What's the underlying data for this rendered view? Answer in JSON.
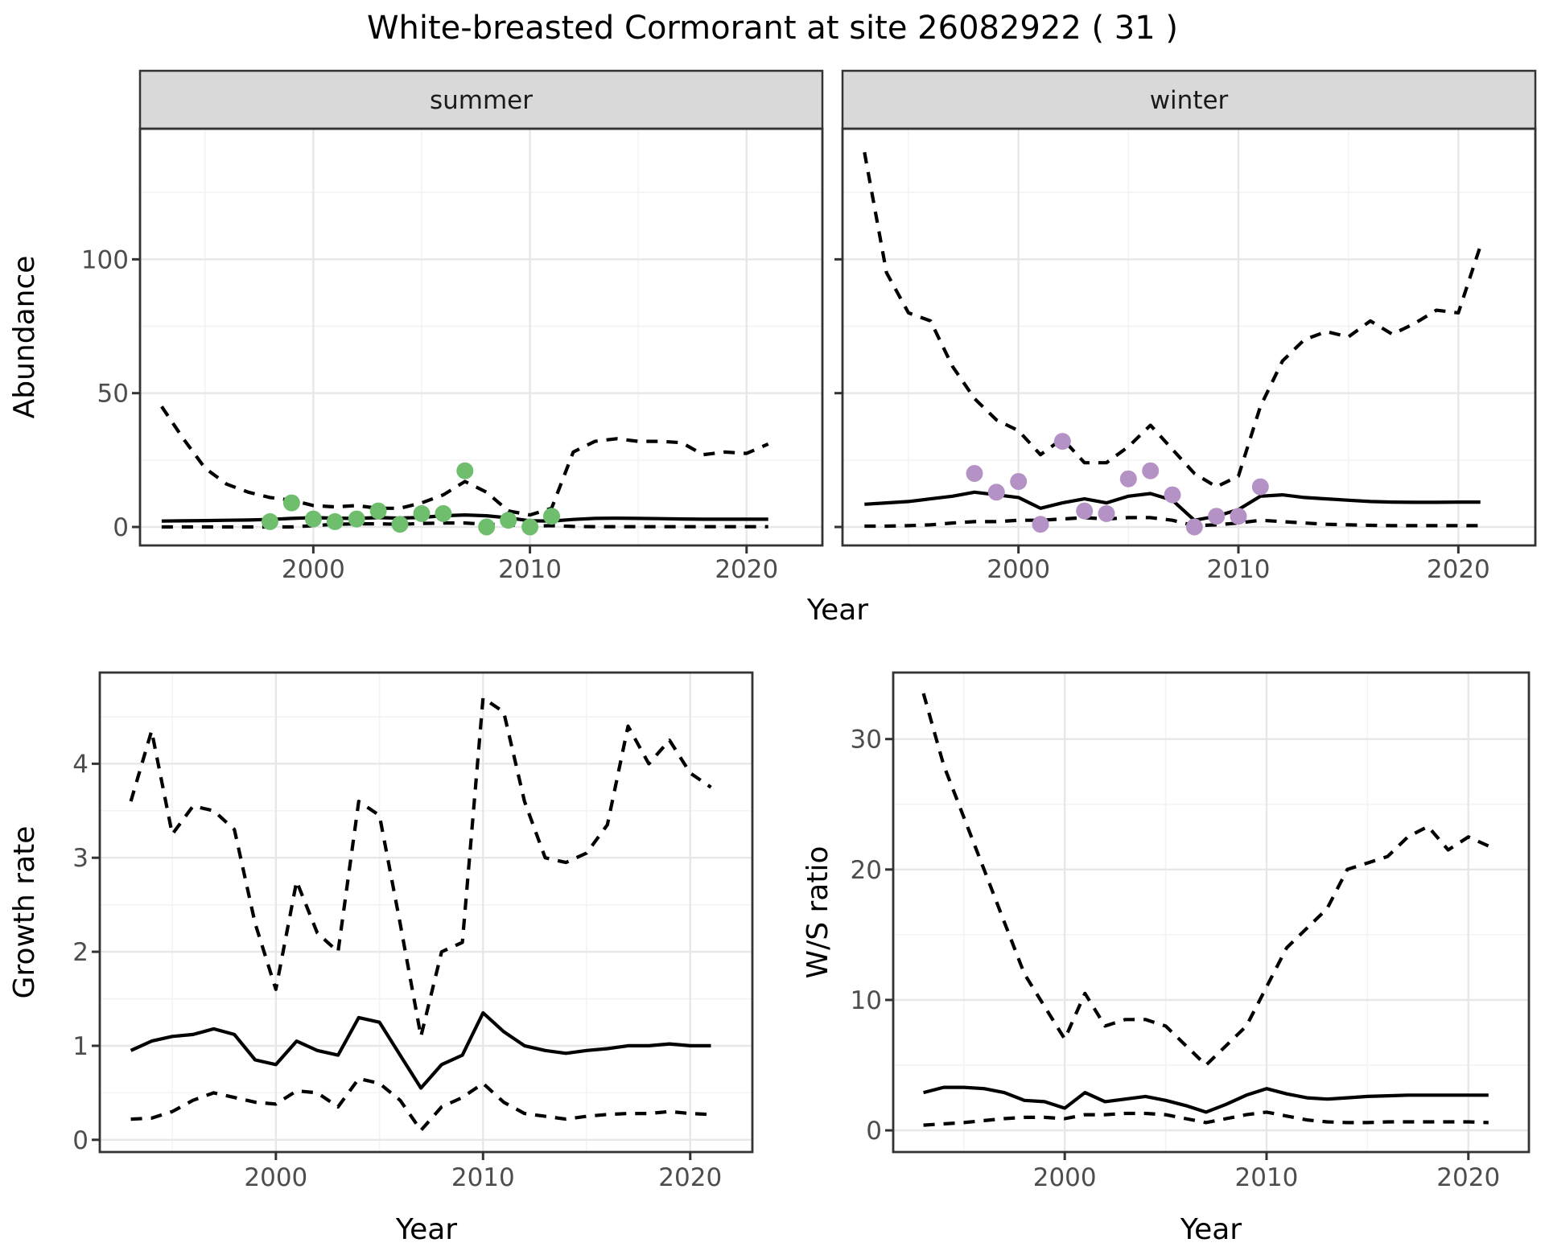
{
  "title": "White-breasted Cormorant at site 26082922 ( 31 )",
  "chart_data": {
    "type": "line",
    "title": "White-breasted Cormorant at site 26082922 ( 31 )",
    "years": [
      1993,
      1994,
      1995,
      1996,
      1997,
      1998,
      1999,
      2000,
      2001,
      2002,
      2003,
      2004,
      2005,
      2006,
      2007,
      2008,
      2009,
      2010,
      2011,
      2012,
      2013,
      2014,
      2015,
      2016,
      2017,
      2018,
      2019,
      2020,
      2021
    ],
    "x_axis": {
      "label": "Year",
      "ticks": [
        "2000",
        "2010",
        "2020"
      ],
      "tick_values": [
        2000,
        2010,
        2020
      ],
      "minor_values": [
        1995,
        2005,
        2015
      ]
    },
    "panels": [
      {
        "id": "abundance-summer",
        "facet": "summer",
        "ylabel": "Abundance",
        "ytick_labels": [
          "0",
          "50",
          "100"
        ],
        "ytick_values": [
          0,
          50,
          100
        ],
        "yminor_values": [
          25,
          75,
          125
        ],
        "series": [
          {
            "name": "median",
            "style": "solid",
            "values": [
              2.2,
              2.3,
              2.4,
              2.5,
              2.6,
              2.8,
              3.2,
              3.5,
              3.3,
              3.2,
              3.5,
              3.3,
              3.6,
              4.2,
              4.5,
              4.2,
              3.4,
              2.3,
              2.2,
              2.8,
              3.2,
              3.3,
              3.2,
              3.1,
              3.0,
              2.9,
              2.9,
              2.9,
              2.9
            ]
          },
          {
            "name": "upper-ci",
            "style": "dashed",
            "values": [
              45,
              33,
              22,
              16,
              13,
              11,
              10,
              8,
              7.5,
              8,
              7,
              7,
              9,
              12,
              17,
              13,
              6,
              4.5,
              7,
              28,
              32,
              33,
              32,
              32,
              31.5,
              27,
              28,
              27.5,
              31
            ]
          },
          {
            "name": "lower-ci",
            "style": "dashed",
            "values": [
              0,
              0,
              0,
              0,
              0,
              0,
              0,
              0.5,
              1,
              1.2,
              1.2,
              1,
              1.3,
              1.5,
              1.5,
              1,
              0.8,
              0.3,
              0.5,
              0.2,
              0.1,
              0.1,
              0.1,
              0.1,
              0.1,
              0.1,
              0.1,
              0.1,
              0.1
            ]
          }
        ],
        "points": {
          "color": "#6ebe6e",
          "years": [
            1998,
            1999,
            2000,
            2001,
            2002,
            2003,
            2004,
            2005,
            2006,
            2007,
            2008,
            2009,
            2010,
            2011
          ],
          "values": [
            2,
            9,
            3,
            2,
            3,
            6,
            1,
            5,
            5,
            21,
            0,
            2.5,
            0,
            4
          ]
        }
      },
      {
        "id": "abundance-winter",
        "facet": "winter",
        "ylabel": "Abundance",
        "ytick_labels": [],
        "ytick_values": [
          0,
          50,
          100
        ],
        "yminor_values": [
          25,
          75,
          125
        ],
        "series": [
          {
            "name": "median",
            "style": "solid",
            "values": [
              8.5,
              9,
              9.5,
              10.5,
              11.5,
              13,
              12,
              11,
              7,
              9,
              10.5,
              9,
              11.5,
              12.5,
              10,
              2.5,
              4,
              6.5,
              11.5,
              12,
              11,
              10.5,
              10,
              9.5,
              9.3,
              9.2,
              9.2,
              9.3,
              9.3
            ]
          },
          {
            "name": "upper-ci",
            "style": "dashed",
            "values": [
              140,
              95,
              80,
              77,
              60,
              48,
              40,
              36,
              27,
              33,
              24,
              24,
              30,
              38,
              29,
              20,
              15,
              19,
              45,
              62,
              70,
              73,
              71,
              77,
              72,
              76,
              81,
              80,
              105
            ]
          },
          {
            "name": "lower-ci",
            "style": "dashed",
            "values": [
              0.3,
              0.3,
              0.5,
              0.8,
              1.5,
              2,
              2,
              2.5,
              2.5,
              3,
              3.5,
              3,
              3.5,
              3.5,
              2.5,
              0.5,
              0.8,
              1.5,
              2.5,
              2,
              1.5,
              1,
              0.8,
              0.6,
              0.5,
              0.5,
              0.5,
              0.5,
              0.5
            ]
          }
        ],
        "points": {
          "color": "#b592c6",
          "years": [
            1998,
            1999,
            2000,
            2001,
            2002,
            2003,
            2004,
            2005,
            2006,
            2007,
            2008,
            2009,
            2010,
            2011
          ],
          "values": [
            20,
            13,
            17,
            1,
            32,
            6,
            5,
            18,
            21,
            12,
            0,
            4,
            4,
            15
          ]
        }
      },
      {
        "id": "growth-rate",
        "facet": null,
        "ylabel": "Growth rate",
        "ytick_labels": [
          "0",
          "1",
          "2",
          "3",
          "4"
        ],
        "ytick_values": [
          0,
          1,
          2,
          3,
          4
        ],
        "yminor_values": [
          0.5,
          1.5,
          2.5,
          3.5,
          4.5
        ],
        "series": [
          {
            "name": "median",
            "style": "solid",
            "values": [
              0.95,
              1.05,
              1.1,
              1.12,
              1.18,
              1.12,
              0.85,
              0.8,
              1.05,
              0.95,
              0.9,
              1.3,
              1.25,
              0.9,
              0.55,
              0.8,
              0.9,
              1.35,
              1.15,
              1.0,
              0.95,
              0.92,
              0.95,
              0.97,
              1.0,
              1.0,
              1.02,
              1.0,
              1.0
            ]
          },
          {
            "name": "upper-ci",
            "style": "dashed",
            "values": [
              3.6,
              4.35,
              3.25,
              3.55,
              3.5,
              3.3,
              2.3,
              1.6,
              2.75,
              2.2,
              2.0,
              3.6,
              3.45,
              2.3,
              1.1,
              2.0,
              2.1,
              4.7,
              4.55,
              3.6,
              3.0,
              2.95,
              3.05,
              3.35,
              4.4,
              4.0,
              4.25,
              3.9,
              3.75
            ]
          },
          {
            "name": "lower-ci",
            "style": "dashed",
            "values": [
              0.22,
              0.23,
              0.3,
              0.42,
              0.5,
              0.45,
              0.4,
              0.38,
              0.52,
              0.5,
              0.35,
              0.65,
              0.6,
              0.42,
              0.1,
              0.35,
              0.45,
              0.6,
              0.4,
              0.28,
              0.25,
              0.22,
              0.25,
              0.27,
              0.28,
              0.28,
              0.3,
              0.28,
              0.27
            ]
          }
        ],
        "points": null
      },
      {
        "id": "ws-ratio",
        "facet": null,
        "ylabel": "W/S ratio",
        "ytick_labels": [
          "0",
          "10",
          "20",
          "30"
        ],
        "ytick_values": [
          0,
          10,
          20,
          30
        ],
        "yminor_values": [
          5,
          15,
          25
        ],
        "series": [
          {
            "name": "median",
            "style": "solid",
            "values": [
              2.9,
              3.3,
              3.3,
              3.2,
              2.9,
              2.3,
              2.2,
              1.7,
              2.9,
              2.2,
              2.4,
              2.6,
              2.3,
              1.9,
              1.4,
              2.0,
              2.7,
              3.2,
              2.8,
              2.5,
              2.4,
              2.5,
              2.6,
              2.65,
              2.7,
              2.7,
              2.7,
              2.7,
              2.7
            ]
          },
          {
            "name": "upper-ci",
            "style": "dashed",
            "values": [
              33.5,
              28,
              24,
              20,
              16,
              12,
              9.5,
              7,
              10.5,
              8,
              8.5,
              8.5,
              8,
              6.5,
              5,
              6.5,
              8,
              11,
              14,
              15.5,
              17,
              20,
              20.5,
              21,
              22.5,
              23.3,
              21.5,
              22.5,
              21.8
            ]
          },
          {
            "name": "lower-ci",
            "style": "dashed",
            "values": [
              0.4,
              0.5,
              0.6,
              0.75,
              0.9,
              1.0,
              1.0,
              0.9,
              1.2,
              1.2,
              1.3,
              1.3,
              1.2,
              0.9,
              0.6,
              0.9,
              1.2,
              1.4,
              1.1,
              0.8,
              0.65,
              0.6,
              0.6,
              0.65,
              0.65,
              0.65,
              0.65,
              0.65,
              0.6
            ]
          }
        ],
        "points": null
      }
    ],
    "style": {
      "point_green": "#6ebe6e",
      "point_purple": "#b592c6",
      "line_color": "#000000",
      "strip_bg": "#d9d9d9",
      "grid_major": "#e7e7e7",
      "grid_minor": "#f3f3f3",
      "panel_border": "#333333",
      "tick_label_color": "#4d4d4d",
      "background": "#ffffff"
    },
    "legend": null,
    "grid": true
  }
}
